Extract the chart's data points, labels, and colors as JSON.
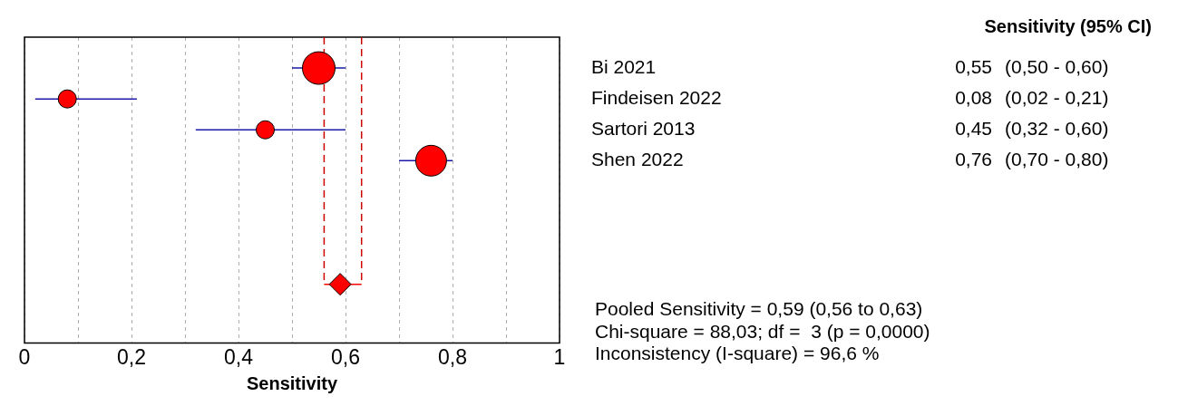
{
  "chart_data": {
    "type": "bubble",
    "orientation": "horizontal",
    "xlabel": "Sensitivity",
    "categories": [
      "Bi 2021",
      "Findeisen 2022",
      "Sartori 2013",
      "Shen 2022",
      null,
      null,
      null,
      null,
      null
    ],
    "series": [
      {
        "color": "#ff0000",
        "values": [
          0.55,
          0.08,
          0.45,
          0.76,
          null,
          null,
          null,
          null,
          null
        ],
        "sizes": [
          1,
          0.31,
          0.31,
          0.89,
          null,
          null,
          null,
          null,
          null
        ],
        "errors": [
          [
            0.5,
            0.6
          ],
          [
            0.02,
            0.21
          ],
          [
            0.32,
            0.6
          ],
          [
            0.7,
            0.8
          ],
          null,
          null,
          null,
          null,
          null
        ],
        "value_labels": [
          "0,55",
          "0,08",
          "0,45",
          "0,76",
          null,
          null,
          null,
          null,
          null
        ]
      },
      {
        "type": "scatter",
        "marker": "diamond",
        "color": "#ff0000",
        "values": [
          null,
          null,
          null,
          null,
          null,
          null,
          null,
          0.59,
          null
        ],
        "errors": [
          null,
          null,
          null,
          null,
          null,
          null,
          null,
          [
            0.56,
            0.63
          ],
          null
        ]
      }
    ],
    "xlim": [
      0,
      1
    ],
    "xticks": [
      {
        "value": 0,
        "label": "0"
      },
      {
        "value": 0.1,
        "label": null
      },
      {
        "value": 0.2,
        "label": "0,2"
      },
      {
        "value": 0.3,
        "label": null
      },
      {
        "value": 0.4,
        "label": "0,4"
      },
      {
        "value": 0.5,
        "label": null
      },
      {
        "value": 0.6,
        "label": "0,6"
      },
      {
        "value": 0.7,
        "label": null
      },
      {
        "value": 0.8,
        "label": "0,8"
      },
      {
        "value": 0.9,
        "label": null
      },
      {
        "value": 1,
        "label": "1"
      }
    ],
    "grid": "x",
    "legend": false,
    "ref_lines": [
      {
        "axis": "x",
        "value": 0.56,
        "color": "#cc0000",
        "line_style": "dashed"
      },
      {
        "axis": "x",
        "value": 0.63,
        "color": "#cc0000",
        "line_style": "dashed"
      }
    ],
    "annotations": [
      "Sensitivity (95% CI)",
      "(0,50 - 0,60)",
      "(0,02 - 0,21)",
      "(0,32 - 0,60)",
      "(0,70 - 0,80)",
      "Pooled Sensitivity = 0,59 (0,56 to 0,63)",
      "Chi-square = 88,03; df =  3 (p = 0,0000)",
      "Inconsistency (I-square) = 96,6 %"
    ]
  }
}
